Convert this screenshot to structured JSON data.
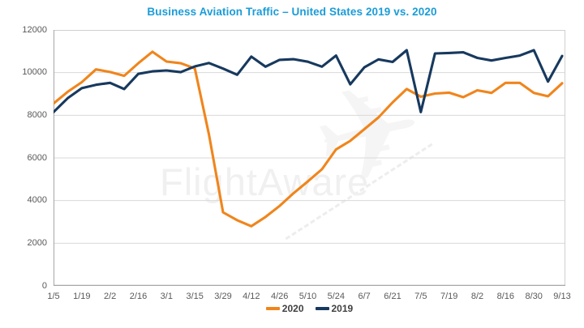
{
  "watermark": {
    "text": "FlightAware",
    "plane_icon": "plane-silhouette"
  },
  "colors": {
    "title": "#1b9cd8",
    "series_2020": "#f0851c",
    "series_2019": "#17395e",
    "gridline": "#d9d9d9",
    "plot_border": "#d0d0d0",
    "axis_line": "#a6a6a6",
    "axis_text": "#595959",
    "legend_text": "#404040",
    "watermark": "#f0f0f0"
  },
  "chart_data": {
    "type": "line",
    "title": "Business Aviation Traffic – United States 2019 vs. 2020",
    "xlabel": "",
    "ylabel": "",
    "grid": true,
    "legend_position": "bottom",
    "ylim": [
      0,
      12000
    ],
    "ytick_step": 2000,
    "x_tick_every": 2,
    "x": [
      "1/5",
      "1/12",
      "1/19",
      "1/26",
      "2/2",
      "2/9",
      "2/16",
      "2/23",
      "3/1",
      "3/8",
      "3/15",
      "3/22",
      "3/29",
      "4/5",
      "4/12",
      "4/19",
      "4/26",
      "5/3",
      "5/10",
      "5/17",
      "5/24",
      "5/31",
      "6/7",
      "6/14",
      "6/21",
      "6/28",
      "7/5",
      "7/12",
      "7/19",
      "7/26",
      "8/2",
      "8/9",
      "8/16",
      "8/23",
      "8/30",
      "9/6",
      "9/13"
    ],
    "x_tick_labels_shown": [
      "1/5",
      "1/19",
      "2/2",
      "2/16",
      "3/1",
      "3/15",
      "3/29",
      "4/12",
      "4/26",
      "5/10",
      "5/24",
      "6/7",
      "6/21",
      "7/5",
      "7/19",
      "8/2",
      "8/16",
      "8/30",
      "9/13"
    ],
    "series": [
      {
        "name": "2020",
        "color": "#f0851c",
        "values": [
          8550,
          9100,
          9550,
          10150,
          10030,
          9850,
          10440,
          10980,
          10520,
          10440,
          10200,
          7100,
          3450,
          3080,
          2800,
          3230,
          3750,
          4350,
          4900,
          5470,
          6400,
          6800,
          7350,
          7900,
          8600,
          9230,
          8870,
          9020,
          9060,
          8850,
          9170,
          9050,
          9520,
          9520,
          9050,
          8890,
          9500
        ]
      },
      {
        "name": "2019",
        "color": "#17395e",
        "values": [
          8150,
          8800,
          9270,
          9430,
          9520,
          9230,
          9940,
          10060,
          10100,
          10020,
          10290,
          10450,
          10190,
          9900,
          10750,
          10280,
          10600,
          10630,
          10510,
          10280,
          10800,
          9450,
          10250,
          10620,
          10500,
          11050,
          8150,
          10900,
          10920,
          10950,
          10690,
          10570,
          10690,
          10800,
          11050,
          9580,
          10780
        ]
      }
    ]
  }
}
